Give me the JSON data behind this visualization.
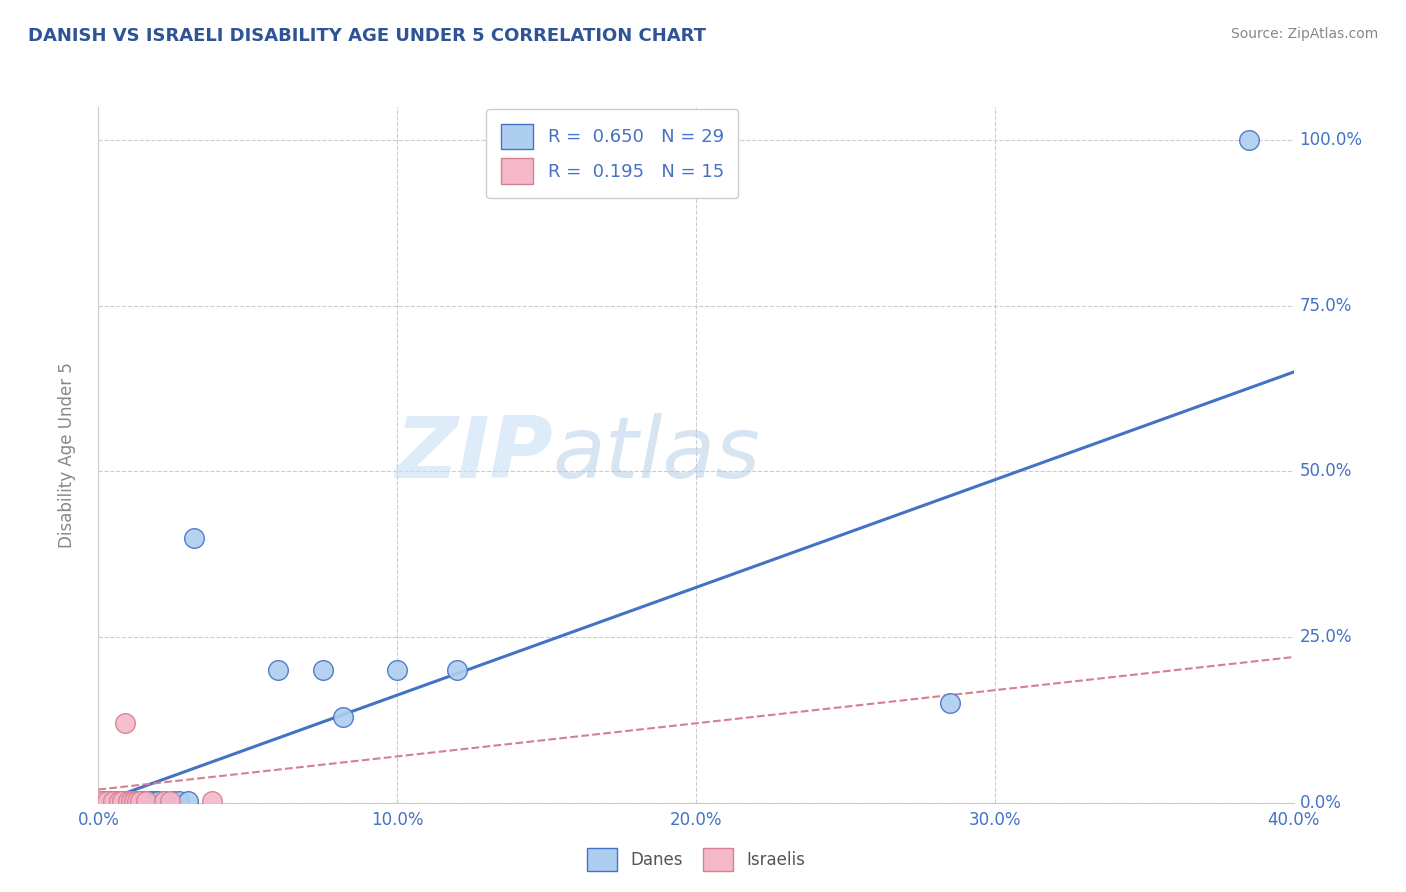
{
  "title": "DANISH VS ISRAELI DISABILITY AGE UNDER 5 CORRELATION CHART",
  "source": "Source: ZipAtlas.com",
  "ylabel": "Disability Age Under 5",
  "xlabel_ticks": [
    "0.0%",
    "10.0%",
    "20.0%",
    "30.0%",
    "40.0%"
  ],
  "ylabel_ticks_right": [
    "100.0%",
    "75.0%",
    "50.0%",
    "25.0%",
    "0.0%"
  ],
  "xlim": [
    0.0,
    0.4
  ],
  "ylim": [
    0.0,
    1.05
  ],
  "legend_r_danes": "R =  0.650",
  "legend_n_danes": "N = 29",
  "legend_r_israelis": "R =  0.195",
  "legend_n_israelis": "N = 15",
  "danes_color": "#aecef0",
  "danes_line_color": "#4472c4",
  "israelis_color": "#f4b8c8",
  "israelis_line_color": "#d48090",
  "watermark_zip": "ZIP",
  "watermark_atlas": "atlas",
  "background_color": "#ffffff",
  "grid_color": "#cccccc",
  "title_color": "#2f5496",
  "tick_color": "#4472c4",
  "danes_scatter_x": [
    0.002,
    0.004,
    0.006,
    0.007,
    0.008,
    0.009,
    0.01,
    0.011,
    0.012,
    0.013,
    0.014,
    0.015,
    0.016,
    0.017,
    0.018,
    0.019,
    0.02,
    0.022,
    0.025,
    0.027,
    0.03,
    0.032,
    0.06,
    0.075,
    0.082,
    0.1,
    0.12,
    0.285,
    0.385
  ],
  "danes_scatter_y": [
    0.003,
    0.003,
    0.003,
    0.003,
    0.003,
    0.003,
    0.003,
    0.003,
    0.003,
    0.003,
    0.003,
    0.003,
    0.003,
    0.003,
    0.003,
    0.003,
    0.003,
    0.003,
    0.003,
    0.003,
    0.003,
    0.4,
    0.2,
    0.2,
    0.13,
    0.2,
    0.2,
    0.15,
    1.0
  ],
  "israelis_scatter_x": [
    0.001,
    0.003,
    0.005,
    0.007,
    0.008,
    0.009,
    0.01,
    0.011,
    0.012,
    0.013,
    0.014,
    0.016,
    0.022,
    0.024,
    0.038
  ],
  "israelis_scatter_y": [
    0.003,
    0.003,
    0.003,
    0.003,
    0.003,
    0.12,
    0.003,
    0.003,
    0.003,
    0.003,
    0.003,
    0.003,
    0.003,
    0.003,
    0.003
  ],
  "danes_trendline_x": [
    0.0,
    0.4
  ],
  "danes_trendline_y": [
    0.0,
    0.65
  ],
  "israelis_trendline_x": [
    0.0,
    0.4
  ],
  "israelis_trendline_y": [
    0.02,
    0.22
  ]
}
